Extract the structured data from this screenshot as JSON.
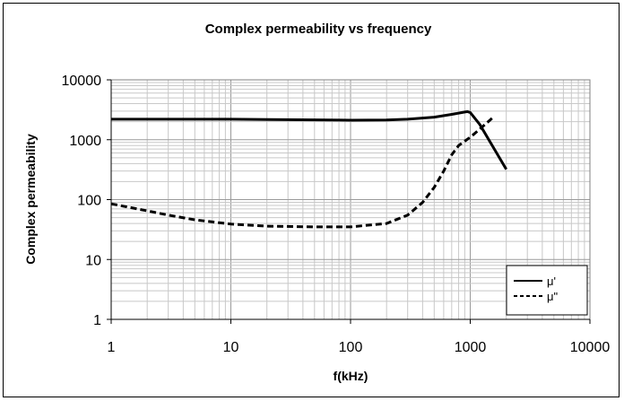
{
  "chart_data": {
    "type": "line",
    "title": "Complex permeability vs frequency",
    "xlabel": "f(kHz)",
    "ylabel": "Complex permeability",
    "xscale": "log",
    "yscale": "log",
    "xlim": [
      1,
      10000
    ],
    "ylim": [
      1,
      10000
    ],
    "x_ticks": [
      "1",
      "10",
      "100",
      "1000",
      "10000"
    ],
    "y_ticks": [
      "1",
      "10",
      "100",
      "1000",
      "10000"
    ],
    "grid": "major and minor",
    "legend": "bottom-right",
    "series": [
      {
        "name": "μ'",
        "style": "solid",
        "color": "#000000",
        "x": [
          1,
          2,
          5,
          10,
          20,
          50,
          100,
          200,
          300,
          500,
          700,
          900,
          950,
          1000,
          1200,
          1500,
          2000
        ],
        "y": [
          2200,
          2200,
          2200,
          2200,
          2180,
          2150,
          2120,
          2130,
          2200,
          2380,
          2650,
          2900,
          2950,
          2850,
          1800,
          850,
          320
        ]
      },
      {
        "name": "μ\"",
        "style": "dashed",
        "color": "#000000",
        "x": [
          1,
          2,
          3,
          5,
          10,
          20,
          50,
          100,
          200,
          300,
          400,
          500,
          600,
          700,
          800,
          1000,
          1200,
          1600
        ],
        "y": [
          85,
          65,
          55,
          46,
          39,
          36,
          35,
          35,
          40,
          55,
          90,
          160,
          300,
          560,
          800,
          1100,
          1500,
          2500
        ]
      }
    ]
  }
}
